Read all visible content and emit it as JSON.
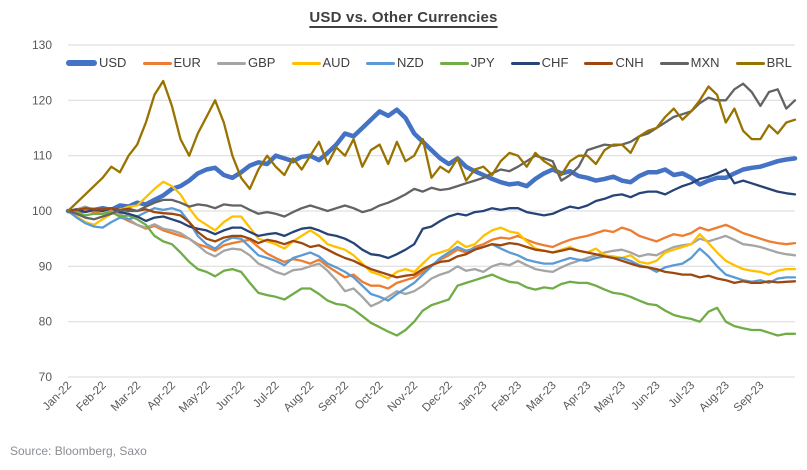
{
  "title": "USD vs. Other Currencies",
  "source": "Source: Bloomberg, Saxo",
  "chart_data": {
    "type": "line",
    "title": "USD vs. Other Currencies",
    "x_tick_labels": [
      "Jan-22",
      "Feb-22",
      "Mar-22",
      "Apr-22",
      "May-22",
      "Jun-22",
      "Jul-22",
      "Aug-22",
      "Sep-22",
      "Oct-22",
      "Nov-22",
      "Dec-22",
      "Jan-23",
      "Feb-23",
      "Mar-23",
      "Apr-23",
      "May-23",
      "Jun-23",
      "Jul-23",
      "Aug-23",
      "Sep-23"
    ],
    "x_months_total": 21,
    "points_per_month": 4,
    "index_base": 100,
    "ylim": [
      70,
      130
    ],
    "yticks": [
      70,
      80,
      90,
      100,
      110,
      120,
      130
    ],
    "grid": "horizontal",
    "legend_position": "top",
    "style": {
      "grid_color": "#d9d9d9",
      "axis_text_color": "#595959",
      "title_color": "#404040"
    },
    "series": [
      {
        "name": "USD",
        "color": "#4472C4",
        "thick": true,
        "values": [
          100,
          99.6,
          100.3,
          100.2,
          100.5,
          100.2,
          101,
          100.8,
          101.5,
          101.2,
          102,
          102.8,
          104,
          104.5,
          105.5,
          106.8,
          107.5,
          107.8,
          106.5,
          106,
          107,
          108.2,
          108.8,
          108.5,
          110,
          109.5,
          109,
          109.8,
          110,
          109.2,
          110.5,
          112,
          114,
          113.5,
          115,
          116.5,
          118,
          117.2,
          118.3,
          116.8,
          114,
          112.5,
          111,
          109.5,
          108.5,
          109.5,
          108,
          107.2,
          106.5,
          105.8,
          105.2,
          104.8,
          105,
          104.5,
          105.8,
          106.8,
          107.5,
          106.8,
          107.2,
          106.3,
          106,
          105.5,
          105.8,
          106.2,
          105.5,
          105.2,
          106.3,
          107,
          107,
          107.5,
          106.5,
          106.8,
          106,
          104.8,
          105.5,
          106,
          106,
          106.8,
          107.5,
          107.8,
          108,
          108.5,
          109,
          109.3,
          109.5
        ]
      },
      {
        "name": "EUR",
        "color": "#ED7D31",
        "thick": false,
        "values": [
          100,
          99.7,
          100.2,
          99.8,
          99.5,
          100,
          99,
          98.2,
          97.5,
          96.8,
          97.3,
          96.5,
          96,
          95.5,
          95,
          94,
          93.5,
          92.8,
          93.8,
          94.2,
          94.5,
          94.8,
          93.5,
          92.3,
          91.5,
          90.8,
          91.3,
          91,
          90.5,
          91.2,
          90,
          89,
          88,
          88.5,
          87.2,
          86.5,
          86.5,
          86,
          87,
          87.5,
          88,
          89,
          90.2,
          91.2,
          92,
          93,
          92.5,
          93.5,
          94,
          94.8,
          95.2,
          95,
          95.5,
          94.8,
          94.2,
          93.8,
          93.5,
          94.2,
          94.8,
          95.2,
          95.5,
          96,
          96.5,
          96.2,
          97,
          96.5,
          95.5,
          95,
          94.5,
          95.2,
          95.8,
          95.5,
          96,
          97,
          96.5,
          97,
          97.5,
          96.8,
          96,
          95.5,
          95,
          94.5,
          94.2,
          94,
          94.2
        ]
      },
      {
        "name": "GBP",
        "color": "#A5A5A5",
        "thick": false,
        "values": [
          100,
          100.3,
          100.8,
          100.2,
          100,
          100.4,
          99.5,
          98.5,
          97.5,
          97,
          97.6,
          96.8,
          96.5,
          96,
          95,
          93.8,
          92.5,
          91.8,
          92.8,
          93.2,
          93,
          92,
          90.5,
          89.8,
          89,
          88.5,
          89.3,
          89.5,
          90,
          90.5,
          89.2,
          87.5,
          85.5,
          86,
          84.5,
          82.8,
          83.5,
          84.5,
          85.5,
          85,
          85.5,
          86.5,
          87.8,
          88.5,
          89,
          90,
          89.2,
          89.5,
          89,
          90,
          90.5,
          90.2,
          91,
          90.2,
          89.5,
          89.2,
          89,
          89.8,
          90.5,
          91,
          91.5,
          92,
          92.5,
          92.8,
          93,
          92.5,
          91.8,
          92.2,
          92,
          92.8,
          93.5,
          93.8,
          94,
          95,
          94.5,
          95,
          95.5,
          94.8,
          94,
          93.8,
          93.5,
          93,
          92.5,
          92.2,
          92
        ]
      },
      {
        "name": "AUD",
        "color": "#FFC000",
        "thick": false,
        "values": [
          100,
          99,
          98,
          97.5,
          98.5,
          99.5,
          100.2,
          100.8,
          101,
          102.5,
          104,
          105.3,
          104.5,
          103,
          100.5,
          98.5,
          97.5,
          96.5,
          98,
          99,
          99,
          97,
          95,
          94.5,
          94,
          93.2,
          94.5,
          95.5,
          96.5,
          95.5,
          94,
          93.5,
          93,
          92,
          90.5,
          89,
          88.5,
          87.8,
          89,
          89.5,
          89,
          90.5,
          92,
          92.5,
          93,
          94.5,
          93.5,
          94,
          95.5,
          96.5,
          97,
          96.3,
          96,
          94.5,
          93.2,
          92.8,
          92.5,
          93,
          93.5,
          92.8,
          92.5,
          93.2,
          92,
          91.8,
          91.5,
          92,
          90.8,
          90.5,
          91,
          92.5,
          93,
          93.5,
          94,
          95.8,
          94.2,
          92.5,
          91,
          90.2,
          89.5,
          89.2,
          89,
          88.5,
          89.2,
          89.5,
          89.5
        ]
      },
      {
        "name": "NZD",
        "color": "#5B9BD5",
        "thick": false,
        "values": [
          100,
          98.8,
          97.8,
          97.2,
          97,
          98,
          98.8,
          98.5,
          99,
          99.8,
          100.5,
          100.2,
          100.5,
          100,
          98,
          95.5,
          94,
          93.2,
          94.5,
          95.2,
          95,
          93.5,
          92,
          91.5,
          91,
          90.2,
          91.5,
          92,
          92.5,
          91.8,
          90.5,
          89.8,
          89,
          88,
          86.5,
          85,
          84.5,
          83.8,
          85,
          86,
          87,
          88.5,
          90,
          91.5,
          92.5,
          93.5,
          92.8,
          93.2,
          93.5,
          94,
          93.2,
          92.5,
          92,
          91.2,
          90.8,
          90.5,
          90.5,
          91,
          91.5,
          91.2,
          91,
          91.5,
          91.8,
          91.5,
          91.5,
          91,
          90.2,
          89.8,
          89,
          89.8,
          90.2,
          90.5,
          91.5,
          93.2,
          91.8,
          90,
          88.5,
          88,
          87.5,
          87.2,
          87.5,
          87,
          87.8,
          88,
          88
        ]
      },
      {
        "name": "JPY",
        "color": "#70AD47",
        "thick": false,
        "values": [
          100,
          99.8,
          99.2,
          99.5,
          99.5,
          99.8,
          99,
          99.2,
          98.5,
          97.5,
          95.5,
          94.5,
          94,
          92.5,
          90.8,
          89.5,
          89,
          88.2,
          89.2,
          89.5,
          89,
          87,
          85.2,
          84.8,
          84.5,
          84,
          85,
          86,
          86,
          85,
          83.8,
          83.2,
          83,
          82.2,
          81,
          79.8,
          79,
          78.2,
          77.5,
          78.5,
          80,
          82,
          83,
          83.5,
          84,
          86.5,
          87,
          87.5,
          88,
          88.5,
          87.8,
          87.2,
          87,
          86.2,
          85.8,
          86.2,
          86,
          86.8,
          87.2,
          87,
          87,
          86.5,
          85.8,
          85.2,
          85,
          84.5,
          83.8,
          83.2,
          83,
          82,
          81.2,
          80.8,
          80.5,
          80,
          81.8,
          82.5,
          80,
          79.2,
          78.8,
          78.5,
          78.5,
          78,
          77.5,
          77.8,
          77.8
        ]
      },
      {
        "name": "CHF",
        "color": "#264478",
        "thick": false,
        "values": [
          100,
          100.3,
          99.8,
          100.2,
          100,
          100.5,
          99.8,
          99.5,
          99,
          98.2,
          98.8,
          99,
          98.5,
          98,
          97.2,
          96.8,
          96.5,
          95.8,
          96.5,
          97,
          97,
          96.2,
          95.5,
          95.8,
          96,
          95.5,
          96.2,
          96.8,
          97,
          96.5,
          95.8,
          95.5,
          95,
          94.2,
          93,
          92.2,
          92,
          91.5,
          92.2,
          93,
          94,
          96.8,
          97.2,
          98.2,
          99,
          99.5,
          99.2,
          99.8,
          100,
          100.5,
          100.2,
          100.5,
          100.5,
          99.8,
          99.5,
          99.2,
          99.5,
          100.2,
          100.8,
          100.5,
          101,
          101.8,
          102.2,
          102.8,
          103,
          102.5,
          103.2,
          103.5,
          103.5,
          103,
          103.8,
          104.5,
          105,
          105.8,
          106.2,
          106.8,
          107.5,
          105,
          105.5,
          105,
          104.5,
          104,
          103.5,
          103.2,
          103
        ]
      },
      {
        "name": "CNH",
        "color": "#9E480E",
        "thick": false,
        "values": [
          100,
          100.2,
          100.5,
          100.3,
          100.3,
          100.5,
          100.2,
          100.4,
          100,
          100.3,
          99.8,
          99.6,
          99.5,
          99.2,
          98,
          96.2,
          95,
          94.5,
          95.2,
          95.5,
          95.5,
          95,
          94.2,
          94.8,
          94.5,
          94,
          94.6,
          94.2,
          93.5,
          93.8,
          93,
          92.2,
          91.5,
          91,
          90.2,
          89.5,
          89,
          88.5,
          88,
          88.3,
          88.5,
          89.5,
          90.2,
          90.8,
          91,
          91.8,
          92.2,
          93,
          93.5,
          94,
          93.8,
          94.2,
          94,
          93.5,
          93,
          92.8,
          92.5,
          92.8,
          93.2,
          92.8,
          92.5,
          92.2,
          91.8,
          91.5,
          91,
          90.5,
          90,
          89.8,
          89.5,
          89,
          88.8,
          88.5,
          88.5,
          88,
          88.3,
          87.8,
          87.5,
          87,
          87.3,
          87,
          87,
          87.3,
          87.1,
          87.2,
          87.3
        ]
      },
      {
        "name": "MXN",
        "color": "#636363",
        "thick": false,
        "values": [
          100,
          99.5,
          98.8,
          98.5,
          99,
          99.5,
          100.2,
          100,
          100,
          100.8,
          101.5,
          102,
          102,
          101.5,
          100.8,
          101.2,
          101,
          100.5,
          101.2,
          101,
          101,
          100.2,
          99.5,
          99.8,
          99.5,
          99,
          99.8,
          100.5,
          101,
          100.5,
          100,
          100.5,
          101,
          100.5,
          99.8,
          100.2,
          101,
          101.5,
          102.2,
          103,
          104,
          103.5,
          104.2,
          103.8,
          104,
          104.5,
          105,
          105.5,
          106,
          106.8,
          107.5,
          107.2,
          108,
          109,
          110,
          109.5,
          109,
          105.5,
          106.5,
          108,
          111,
          111.5,
          112,
          111.8,
          112,
          112.5,
          113.5,
          114,
          115,
          116,
          117,
          117.5,
          118,
          119.5,
          120.5,
          120,
          120,
          122,
          123,
          121.5,
          119,
          121.5,
          122,
          118.5,
          120
        ]
      },
      {
        "name": "BRL",
        "color": "#997300",
        "thick": false,
        "values": [
          100,
          101.5,
          103,
          104.5,
          106,
          108,
          107,
          110,
          112,
          116,
          121,
          123.5,
          119,
          113,
          110,
          114,
          117,
          120,
          116,
          110,
          106,
          104,
          107.5,
          110,
          108,
          106.5,
          109.5,
          107.5,
          110,
          112.5,
          108.5,
          111.5,
          110,
          113,
          108,
          111,
          112,
          108.5,
          112.5,
          109,
          110,
          113,
          106,
          108,
          107,
          109.5,
          105.5,
          107.5,
          108,
          106.5,
          109,
          110.5,
          110,
          108,
          110.5,
          109,
          108,
          106.5,
          109,
          110,
          110,
          108.5,
          111,
          112,
          112,
          110.5,
          113.5,
          114.5,
          115,
          117,
          118.5,
          116.5,
          118,
          120,
          122.5,
          121,
          116,
          118.5,
          114.5,
          113,
          113,
          115.5,
          114,
          116,
          116.5
        ]
      }
    ]
  }
}
